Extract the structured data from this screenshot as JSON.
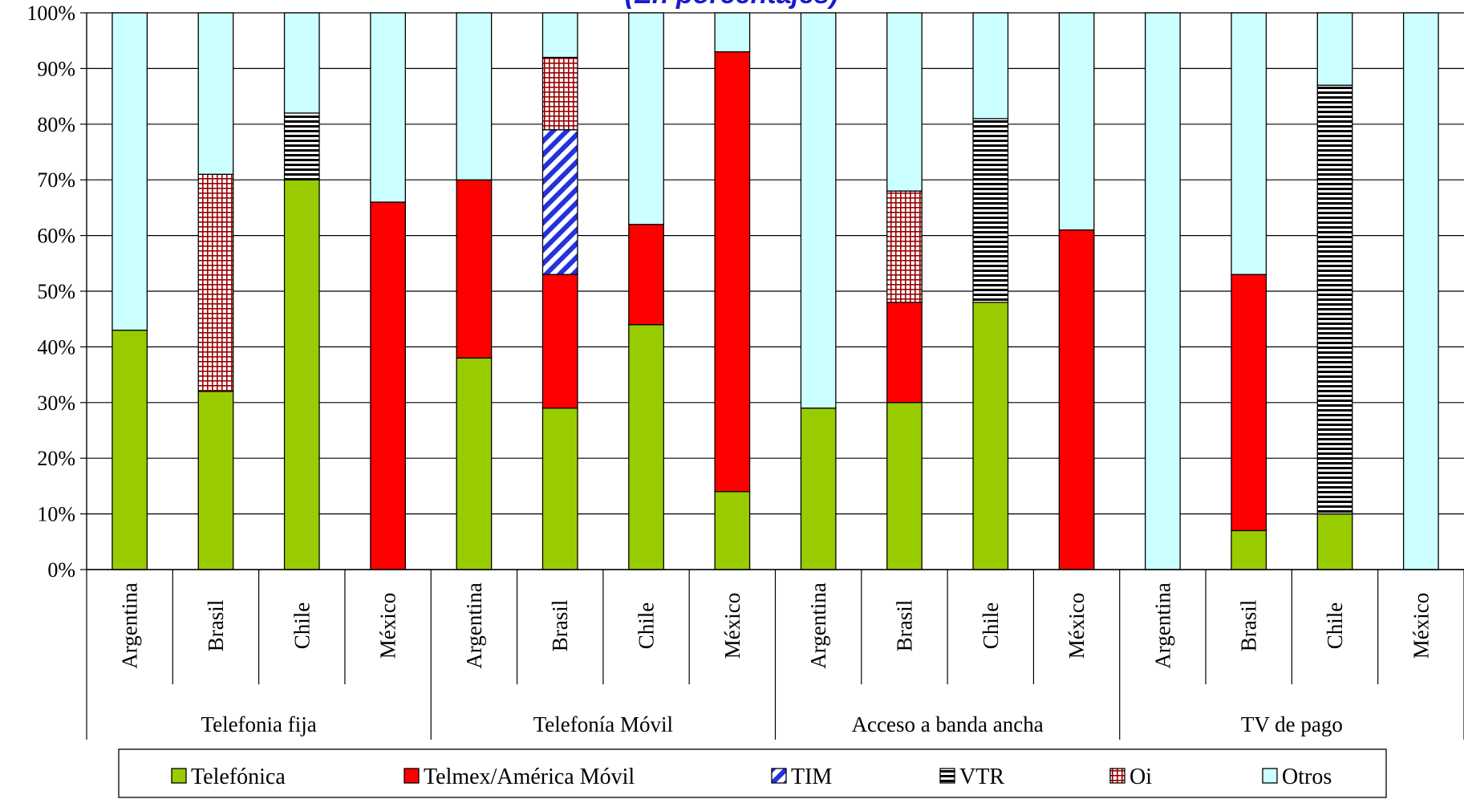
{
  "chart_data": {
    "type": "bar",
    "stacked": true,
    "subtitle": "(En porcentajes)",
    "ylim": [
      0,
      100
    ],
    "y_ticks": [
      "0%",
      "10%",
      "20%",
      "30%",
      "40%",
      "50%",
      "60%",
      "70%",
      "80%",
      "90%",
      "100%"
    ],
    "grid": true,
    "legend_position": "bottom",
    "groups": [
      {
        "label": "Telefonia fija",
        "categories": [
          "Argentina",
          "Brasil",
          "Chile",
          "México"
        ]
      },
      {
        "label": "Telefonía Móvil",
        "categories": [
          "Argentina",
          "Brasil",
          "Chile",
          "México"
        ]
      },
      {
        "label": "Acceso a banda ancha",
        "categories": [
          "Argentina",
          "Brasil",
          "Chile",
          "México"
        ]
      },
      {
        "label": "TV de pago",
        "categories": [
          "Argentina",
          "Brasil",
          "Chile",
          "México"
        ]
      }
    ],
    "series": [
      {
        "name": "Telefónica",
        "color": "#99cc00",
        "pattern": "solid",
        "values": [
          43,
          32,
          70,
          0,
          38,
          29,
          44,
          14,
          29,
          30,
          48,
          0,
          0,
          7,
          10,
          0
        ]
      },
      {
        "name": "Telmex/América Móvil",
        "color": "#ff0000",
        "pattern": "solid",
        "values": [
          0,
          0,
          0,
          66,
          32,
          24,
          18,
          79,
          0,
          18,
          0,
          61,
          0,
          46,
          0,
          0
        ]
      },
      {
        "name": "TIM",
        "color": "#2233dd",
        "pattern": "diagonal",
        "values": [
          0,
          0,
          0,
          0,
          0,
          26,
          0,
          0,
          0,
          0,
          0,
          0,
          0,
          0,
          0,
          0
        ]
      },
      {
        "name": "VTR",
        "color": "#000000",
        "pattern": "horizontal",
        "values": [
          0,
          0,
          12,
          0,
          0,
          0,
          0,
          0,
          0,
          0,
          33,
          0,
          0,
          0,
          77,
          0
        ]
      },
      {
        "name": "Oi",
        "color": "#990000",
        "pattern": "grid",
        "values": [
          0,
          39,
          0,
          0,
          0,
          13,
          0,
          0,
          0,
          20,
          0,
          0,
          0,
          0,
          0,
          0
        ]
      },
      {
        "name": "Otros",
        "color": "#ccffff",
        "pattern": "solid",
        "values": [
          57,
          29,
          18,
          34,
          30,
          8,
          38,
          7,
          71,
          32,
          19,
          39,
          100,
          47,
          13,
          100
        ]
      }
    ]
  }
}
